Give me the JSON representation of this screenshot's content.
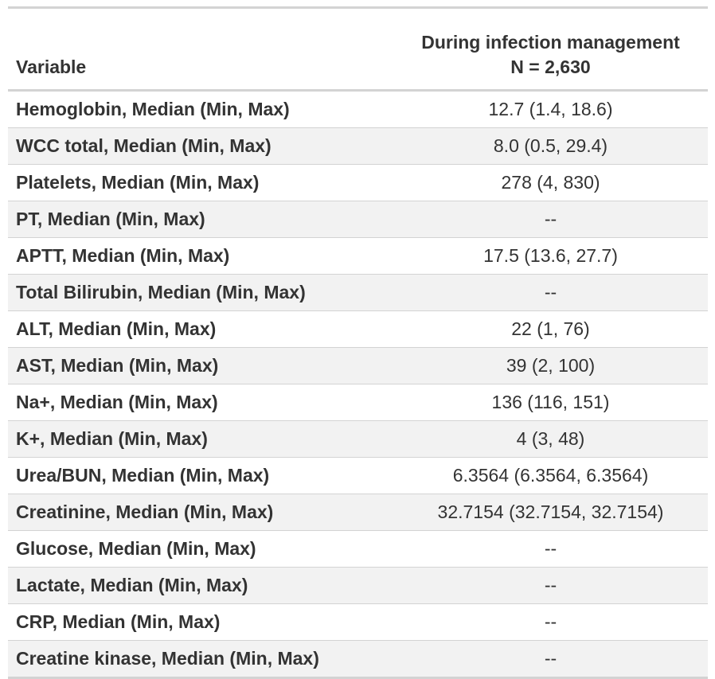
{
  "header": {
    "variable_label": "Variable",
    "group_label": "During infection management",
    "group_n": "N = 2,630"
  },
  "rows": [
    {
      "label": "Hemoglobin, Median (Min, Max)",
      "value": "12.7 (1.4, 18.6)"
    },
    {
      "label": "WCC total, Median (Min, Max)",
      "value": "8.0 (0.5, 29.4)"
    },
    {
      "label": "Platelets, Median (Min, Max)",
      "value": "278 (4, 830)"
    },
    {
      "label": "PT, Median (Min, Max)",
      "value": "--"
    },
    {
      "label": "APTT, Median (Min, Max)",
      "value": "17.5 (13.6, 27.7)"
    },
    {
      "label": "Total Bilirubin, Median (Min, Max)",
      "value": "--"
    },
    {
      "label": "ALT, Median (Min, Max)",
      "value": "22 (1, 76)"
    },
    {
      "label": "AST, Median (Min, Max)",
      "value": "39 (2, 100)"
    },
    {
      "label": "Na+, Median (Min, Max)",
      "value": "136 (116, 151)"
    },
    {
      "label": "K+, Median (Min, Max)",
      "value": "4 (3, 48)"
    },
    {
      "label": "Urea/BUN, Median (Min, Max)",
      "value": "6.3564 (6.3564, 6.3564)"
    },
    {
      "label": "Creatinine, Median (Min, Max)",
      "value": "32.7154 (32.7154, 32.7154)"
    },
    {
      "label": "Glucose, Median (Min, Max)",
      "value": "--"
    },
    {
      "label": "Lactate, Median (Min, Max)",
      "value": "--"
    },
    {
      "label": "CRP, Median (Min, Max)",
      "value": "--"
    },
    {
      "label": "Creatine kinase, Median (Min, Max)",
      "value": "--"
    }
  ]
}
